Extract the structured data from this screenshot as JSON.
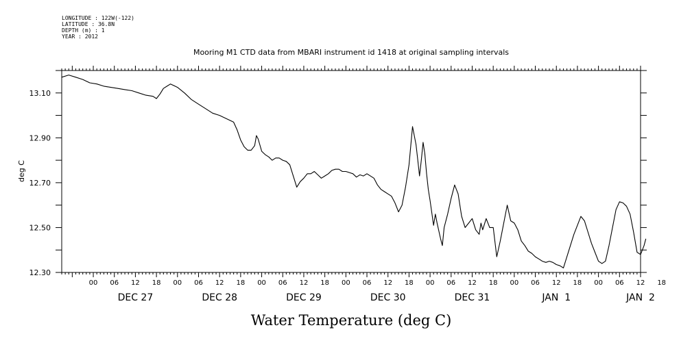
{
  "header": {
    "longitude": "LONGITUDE : 122W(-122)",
    "latitude": "LATITUDE : 36.8N",
    "depth": "DEPTH (m) : 1",
    "year": "YEAR : 2012"
  },
  "chart_data": {
    "type": "line",
    "title": "Mooring M1 CTD data from MBARI instrument id 1418 at original sampling intervals",
    "xlabel": "Water Temperature (deg C)",
    "ylabel": "deg C",
    "ylim": [
      12.3,
      13.2
    ],
    "yticks": [
      12.3,
      12.5,
      12.7,
      12.9,
      13.1
    ],
    "ytick_labels": [
      "12.30",
      "12.50",
      "12.70",
      "12.90",
      "13.10"
    ],
    "xlim_hours": [
      -9,
      156
    ],
    "hour_tick_labels": [
      "00",
      "06",
      "12",
      "18",
      "00",
      "06",
      "12",
      "18",
      "00",
      "06",
      "12",
      "18",
      "00",
      "06",
      "12",
      "18",
      "00",
      "06",
      "12",
      "18",
      "00",
      "06",
      "12",
      "18",
      "00",
      "06",
      "12",
      "18"
    ],
    "day_labels": [
      "DEC 27",
      "DEC 28",
      "DEC 29",
      "DEC 30",
      "DEC 31",
      "JAN  1",
      "JAN  2"
    ],
    "grid": false,
    "series": [
      {
        "color": "#000000",
        "points": [
          [
            -9,
            13.17
          ],
          [
            -7,
            13.18
          ],
          [
            -5,
            13.17
          ],
          [
            -3,
            13.16
          ],
          [
            -1,
            13.145
          ],
          [
            1,
            13.14
          ],
          [
            3,
            13.13
          ],
          [
            5,
            13.125
          ],
          [
            7,
            13.12
          ],
          [
            9,
            13.115
          ],
          [
            11,
            13.11
          ],
          [
            13,
            13.1
          ],
          [
            15,
            13.09
          ],
          [
            17,
            13.085
          ],
          [
            18,
            13.075
          ],
          [
            19,
            13.095
          ],
          [
            20,
            13.12
          ],
          [
            21,
            13.13
          ],
          [
            22,
            13.14
          ],
          [
            24,
            13.125
          ],
          [
            26,
            13.1
          ],
          [
            28,
            13.07
          ],
          [
            30,
            13.05
          ],
          [
            32,
            13.03
          ],
          [
            34,
            13.01
          ],
          [
            36,
            13.0
          ],
          [
            38,
            12.985
          ],
          [
            40,
            12.97
          ],
          [
            41,
            12.935
          ],
          [
            42,
            12.89
          ],
          [
            43,
            12.86
          ],
          [
            44,
            12.845
          ],
          [
            45,
            12.845
          ],
          [
            46,
            12.865
          ],
          [
            46.5,
            12.91
          ],
          [
            47,
            12.895
          ],
          [
            48,
            12.84
          ],
          [
            49,
            12.825
          ],
          [
            50,
            12.815
          ],
          [
            51,
            12.8
          ],
          [
            52,
            12.81
          ],
          [
            53,
            12.81
          ],
          [
            54,
            12.8
          ],
          [
            55,
            12.795
          ],
          [
            56,
            12.78
          ],
          [
            57,
            12.73
          ],
          [
            58,
            12.68
          ],
          [
            59,
            12.705
          ],
          [
            60,
            12.72
          ],
          [
            61,
            12.74
          ],
          [
            62,
            12.74
          ],
          [
            63,
            12.75
          ],
          [
            64,
            12.735
          ],
          [
            65,
            12.72
          ],
          [
            66,
            12.73
          ],
          [
            67,
            12.74
          ],
          [
            68,
            12.755
          ],
          [
            69,
            12.76
          ],
          [
            70,
            12.76
          ],
          [
            71,
            12.75
          ],
          [
            72,
            12.75
          ],
          [
            73,
            12.745
          ],
          [
            74,
            12.74
          ],
          [
            75,
            12.725
          ],
          [
            76,
            12.735
          ],
          [
            77,
            12.73
          ],
          [
            78,
            12.74
          ],
          [
            79,
            12.73
          ],
          [
            80,
            12.72
          ],
          [
            81,
            12.69
          ],
          [
            82,
            12.67
          ],
          [
            83,
            12.66
          ],
          [
            84,
            12.65
          ],
          [
            85,
            12.64
          ],
          [
            86,
            12.61
          ],
          [
            87,
            12.57
          ],
          [
            88,
            12.6
          ],
          [
            89,
            12.68
          ],
          [
            90,
            12.78
          ],
          [
            91,
            12.95
          ],
          [
            92,
            12.87
          ],
          [
            92.5,
            12.8
          ],
          [
            93,
            12.73
          ],
          [
            93.5,
            12.8
          ],
          [
            94,
            12.88
          ],
          [
            94.5,
            12.83
          ],
          [
            95,
            12.74
          ],
          [
            95.5,
            12.67
          ],
          [
            96,
            12.62
          ],
          [
            97,
            12.51
          ],
          [
            97.5,
            12.56
          ],
          [
            98,
            12.52
          ],
          [
            99,
            12.45
          ],
          [
            99.5,
            12.42
          ],
          [
            100,
            12.5
          ],
          [
            101,
            12.56
          ],
          [
            102,
            12.63
          ],
          [
            103,
            12.69
          ],
          [
            104,
            12.65
          ],
          [
            105,
            12.55
          ],
          [
            106,
            12.5
          ],
          [
            107,
            12.52
          ],
          [
            108,
            12.54
          ],
          [
            109,
            12.49
          ],
          [
            110,
            12.47
          ],
          [
            110.5,
            12.52
          ],
          [
            111,
            12.49
          ],
          [
            112,
            12.54
          ],
          [
            113,
            12.5
          ],
          [
            114,
            12.5
          ],
          [
            115,
            12.37
          ],
          [
            116,
            12.44
          ],
          [
            117,
            12.52
          ],
          [
            118,
            12.6
          ],
          [
            119,
            12.53
          ],
          [
            120,
            12.52
          ],
          [
            121,
            12.49
          ],
          [
            122,
            12.44
          ],
          [
            123,
            12.42
          ],
          [
            124,
            12.395
          ],
          [
            125,
            12.385
          ],
          [
            126,
            12.37
          ],
          [
            127,
            12.36
          ],
          [
            128,
            12.35
          ],
          [
            129,
            12.345
          ],
          [
            130,
            12.35
          ],
          [
            131,
            12.345
          ],
          [
            132,
            12.335
          ],
          [
            133,
            12.33
          ],
          [
            134,
            12.32
          ],
          [
            135,
            12.37
          ],
          [
            136,
            12.42
          ],
          [
            137,
            12.47
          ],
          [
            138,
            12.51
          ],
          [
            139,
            12.55
          ],
          [
            140,
            12.53
          ],
          [
            141,
            12.48
          ],
          [
            142,
            12.43
          ],
          [
            143,
            12.39
          ],
          [
            144,
            12.35
          ],
          [
            145,
            12.34
          ],
          [
            146,
            12.35
          ],
          [
            147,
            12.42
          ],
          [
            148,
            12.5
          ],
          [
            149,
            12.58
          ],
          [
            150,
            12.615
          ],
          [
            151,
            12.61
          ],
          [
            152,
            12.595
          ],
          [
            153,
            12.56
          ],
          [
            154,
            12.48
          ],
          [
            155,
            12.39
          ],
          [
            156,
            12.38
          ],
          [
            156.5,
            12.4
          ],
          [
            157,
            12.42
          ],
          [
            157.5,
            12.45
          ]
        ]
      }
    ]
  }
}
